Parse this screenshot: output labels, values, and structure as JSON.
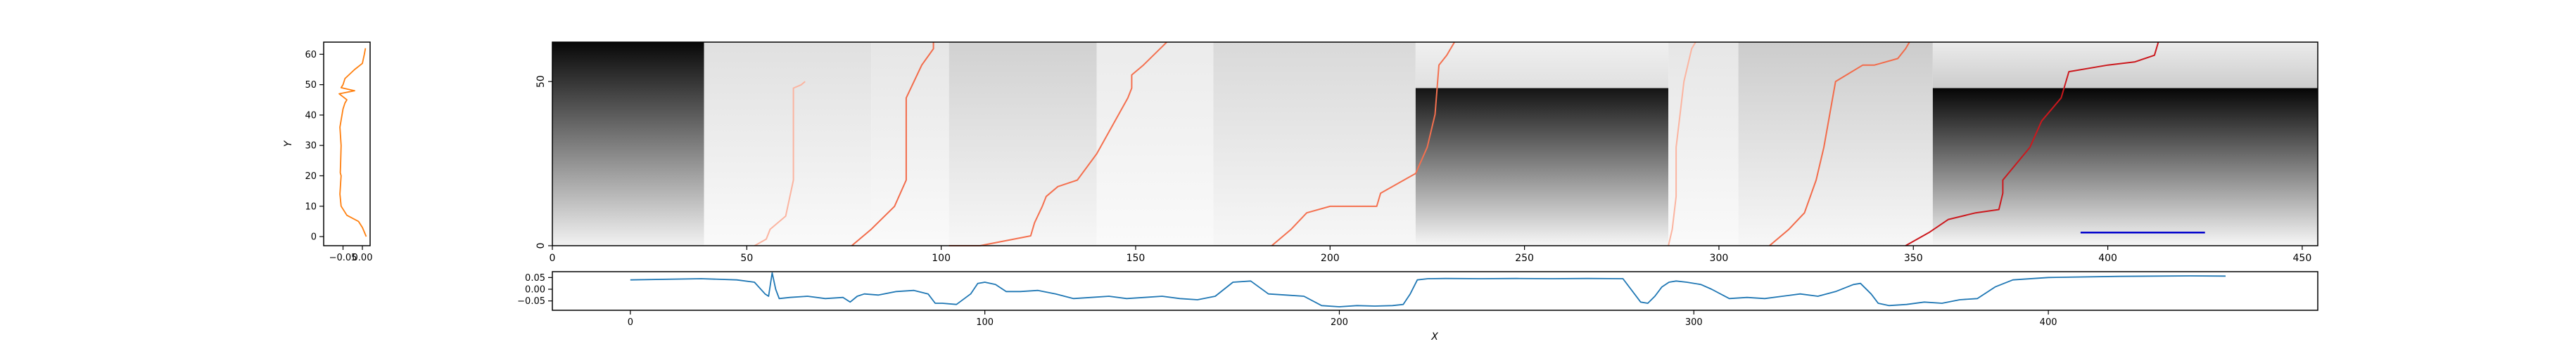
{
  "chart_data": [
    {
      "id": "side",
      "type": "line",
      "xlabel": "",
      "ylabel": "Y",
      "xlim": [
        -0.1,
        0.02
      ],
      "ylim": [
        -3,
        64
      ],
      "xticks": [
        {
          "v": -0.05,
          "label": "−0.05"
        },
        {
          "v": 0.0,
          "label": "0.00"
        }
      ],
      "yticks": [
        {
          "v": 0,
          "label": "0"
        },
        {
          "v": 10,
          "label": "10"
        },
        {
          "v": 20,
          "label": "20"
        },
        {
          "v": 30,
          "label": "30"
        },
        {
          "v": 40,
          "label": "40"
        },
        {
          "v": 50,
          "label": "50"
        },
        {
          "v": 60,
          "label": "60"
        }
      ],
      "color": "#ff7f0e",
      "series": [
        {
          "x": [
            0.01,
            0.0,
            -0.01,
            -0.04,
            -0.055,
            -0.058,
            -0.056,
            -0.055,
            -0.057,
            -0.056,
            -0.055,
            -0.058,
            -0.05,
            -0.045,
            -0.04,
            -0.06,
            -0.02,
            -0.055,
            -0.05,
            -0.045,
            -0.02,
            0.0,
            0.005,
            0.008
          ],
          "y": [
            0,
            3,
            5,
            7,
            10,
            14,
            18,
            20,
            21,
            25,
            30,
            36,
            42,
            44,
            45,
            47,
            48,
            49,
            50,
            52,
            55,
            57,
            60,
            62
          ]
        }
      ]
    },
    {
      "id": "main",
      "type": "heatmap",
      "xlim": [
        0,
        454
      ],
      "ylim": [
        0,
        62
      ],
      "xticks": [
        {
          "v": 0,
          "label": "0"
        },
        {
          "v": 50,
          "label": "50"
        },
        {
          "v": 100,
          "label": "100"
        },
        {
          "v": 150,
          "label": "150"
        },
        {
          "v": 200,
          "label": "200"
        },
        {
          "v": 250,
          "label": "250"
        },
        {
          "v": 300,
          "label": "300"
        },
        {
          "v": 350,
          "label": "350"
        },
        {
          "v": 400,
          "label": "400"
        },
        {
          "v": 450,
          "label": "450"
        }
      ],
      "yticks": [
        {
          "v": 0,
          "label": "0"
        },
        {
          "v": 50,
          "label": "50"
        }
      ],
      "colormap": "greys",
      "blocks": [
        {
          "x0": 0,
          "x1": 39,
          "y0": 0,
          "y1": 62,
          "dark_top": 0.97,
          "dark_bottom": 0.05
        },
        {
          "x0": 39,
          "x1": 82,
          "y0": 0,
          "y1": 62,
          "dark_top": 0.12,
          "dark_bottom": 0.02
        },
        {
          "x0": 82,
          "x1": 102,
          "y0": 0,
          "y1": 62,
          "dark_top": 0.1,
          "dark_bottom": 0.02
        },
        {
          "x0": 102,
          "x1": 140,
          "y0": 0,
          "y1": 62,
          "dark_top": 0.18,
          "dark_bottom": 0.03
        },
        {
          "x0": 140,
          "x1": 170,
          "y0": 0,
          "y1": 62,
          "dark_top": 0.08,
          "dark_bottom": 0.02
        },
        {
          "x0": 170,
          "x1": 222,
          "y0": 0,
          "y1": 62,
          "dark_top": 0.15,
          "dark_bottom": 0.03
        },
        {
          "x0": 222,
          "x1": 287,
          "y0": 0,
          "y1": 48,
          "dark_top": 0.92,
          "dark_bottom": 0.03
        },
        {
          "x0": 222,
          "x1": 287,
          "y0": 48,
          "y1": 62,
          "dark_top": 0.06,
          "dark_bottom": 0.12
        },
        {
          "x0": 287,
          "x1": 305,
          "y0": 0,
          "y1": 62,
          "dark_top": 0.1,
          "dark_bottom": 0.02
        },
        {
          "x0": 305,
          "x1": 355,
          "y0": 0,
          "y1": 62,
          "dark_top": 0.2,
          "dark_bottom": 0.03
        },
        {
          "x0": 355,
          "x1": 454,
          "y0": 0,
          "y1": 48,
          "dark_top": 0.98,
          "dark_bottom": 0.03
        },
        {
          "x0": 355,
          "x1": 454,
          "y0": 48,
          "y1": 62,
          "dark_top": 0.08,
          "dark_bottom": 0.2
        }
      ],
      "paths": [
        {
          "color": "#fbb4a0",
          "x": [
            52,
            55,
            56,
            60,
            62,
            62,
            62,
            64,
            65
          ],
          "y": [
            0,
            2,
            5,
            9,
            20,
            34,
            48,
            49,
            50
          ]
        },
        {
          "color": "#f26b4a",
          "x": [
            77,
            82,
            88,
            91,
            91,
            91,
            95,
            98,
            98
          ],
          "y": [
            0,
            5,
            12,
            20,
            30,
            45,
            55,
            60,
            62
          ]
        },
        {
          "color": "#f4704f",
          "x": [
            102,
            110,
            123,
            124,
            126,
            127,
            130,
            135,
            140,
            148,
            149,
            149,
            152,
            158
          ],
          "y": [
            0,
            0,
            3,
            7,
            12,
            15,
            18,
            20,
            28,
            45,
            48,
            52,
            55,
            62
          ]
        },
        {
          "color": "#f4704f",
          "x": [
            185,
            190,
            194,
            200,
            212,
            213,
            222,
            225,
            227,
            228,
            230,
            232
          ],
          "y": [
            0,
            5,
            10,
            12,
            12,
            16,
            22,
            30,
            40,
            55,
            58,
            62
          ]
        },
        {
          "color": "#fbb4a0",
          "x": [
            287,
            288,
            289,
            289,
            290,
            291,
            292,
            293,
            294
          ],
          "y": [
            0,
            5,
            15,
            30,
            40,
            50,
            55,
            60,
            62
          ]
        },
        {
          "color": "#f26b4a",
          "x": [
            313,
            318,
            322,
            325,
            327,
            330,
            337,
            340,
            346,
            348,
            349
          ],
          "y": [
            0,
            5,
            10,
            20,
            30,
            50,
            55,
            55,
            57,
            60,
            62
          ]
        },
        {
          "color": "#cb181d",
          "x": [
            348,
            354,
            359,
            366,
            372,
            373,
            373,
            380,
            383,
            388,
            390,
            400,
            407,
            412,
            413
          ],
          "y": [
            0,
            4,
            8,
            10,
            11,
            16,
            20,
            30,
            38,
            45,
            53,
            55,
            56,
            58,
            62
          ]
        }
      ],
      "segments": [
        {
          "color": "#0000cc",
          "x": [
            393,
            425
          ],
          "y": [
            4,
            4
          ]
        }
      ]
    },
    {
      "id": "bottom",
      "type": "line",
      "xlabel": "X",
      "ylabel": "",
      "xlim": [
        -22,
        476
      ],
      "ylim": [
        -0.09,
        0.075
      ],
      "xticks": [
        {
          "v": 0,
          "label": "0"
        },
        {
          "v": 100,
          "label": "100"
        },
        {
          "v": 200,
          "label": "200"
        },
        {
          "v": 300,
          "label": "300"
        },
        {
          "v": 400,
          "label": "400"
        }
      ],
      "yticks": [
        {
          "v": 0.05,
          "label": "0.05"
        },
        {
          "v": 0.0,
          "label": "0.00"
        },
        {
          "v": -0.05,
          "label": "−0.05"
        }
      ],
      "color": "#1f77b4",
      "series": [
        {
          "x": [
            0,
            20,
            30,
            35,
            38,
            39,
            40,
            41,
            42,
            45,
            50,
            55,
            60,
            62,
            64,
            66,
            70,
            75,
            80,
            84,
            86,
            88,
            92,
            96,
            98,
            100,
            103,
            106,
            110,
            115,
            120,
            125,
            130,
            135,
            140,
            145,
            150,
            155,
            160,
            165,
            170,
            175,
            180,
            185,
            190,
            195,
            200,
            205,
            210,
            215,
            218,
            220,
            222,
            225,
            230,
            240,
            250,
            260,
            270,
            280,
            285,
            287,
            289,
            291,
            293,
            295,
            298,
            302,
            305,
            310,
            315,
            320,
            325,
            330,
            335,
            340,
            345,
            347,
            350,
            352,
            355,
            360,
            365,
            370,
            375,
            380,
            385,
            390,
            400,
            420,
            440,
            450
          ],
          "y": [
            0.04,
            0.045,
            0.04,
            0.03,
            -0.02,
            -0.03,
            0.07,
            0.0,
            -0.04,
            -0.035,
            -0.03,
            -0.04,
            -0.035,
            -0.055,
            -0.03,
            -0.02,
            -0.025,
            -0.01,
            -0.005,
            -0.02,
            -0.06,
            -0.06,
            -0.065,
            -0.02,
            0.025,
            0.03,
            0.02,
            -0.01,
            -0.01,
            -0.005,
            -0.02,
            -0.04,
            -0.035,
            -0.03,
            -0.04,
            -0.035,
            -0.03,
            -0.04,
            -0.045,
            -0.03,
            0.03,
            0.035,
            -0.02,
            -0.025,
            -0.03,
            -0.07,
            -0.075,
            -0.07,
            -0.072,
            -0.07,
            -0.065,
            -0.02,
            0.04,
            0.045,
            0.046,
            0.045,
            0.046,
            0.045,
            0.046,
            0.045,
            -0.055,
            -0.06,
            -0.03,
            0.01,
            0.03,
            0.035,
            0.03,
            0.02,
            0.0,
            -0.04,
            -0.035,
            -0.04,
            -0.03,
            -0.02,
            -0.03,
            -0.01,
            0.02,
            0.025,
            -0.02,
            -0.06,
            -0.07,
            -0.065,
            -0.055,
            -0.06,
            -0.045,
            -0.04,
            0.01,
            0.04,
            0.05,
            0.055,
            0.057,
            0.056
          ]
        }
      ]
    }
  ]
}
